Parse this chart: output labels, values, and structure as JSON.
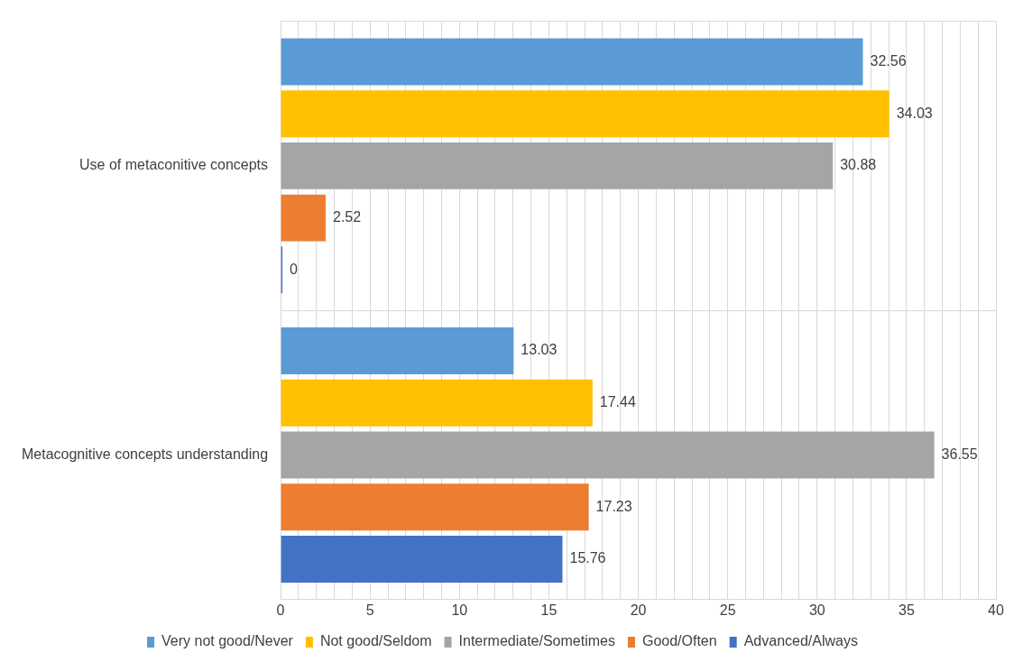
{
  "chart_data": {
    "type": "bar",
    "orientation": "horizontal",
    "categories": [
      "Use of metaconitive concepts",
      "Metacognitive concepts understanding"
    ],
    "series": [
      {
        "name": "Very not good/Never",
        "color": "#5b9bd5",
        "values": [
          32.56,
          13.03
        ]
      },
      {
        "name": "Not good/Seldom",
        "color": "#ffc000",
        "values": [
          34.03,
          17.44
        ]
      },
      {
        "name": "Intermediate/Sometimes",
        "color": "#a5a5a5",
        "values": [
          30.88,
          36.55
        ]
      },
      {
        "name": "Good/Often",
        "color": "#ed7d31",
        "values": [
          2.52,
          17.23
        ]
      },
      {
        "name": "Advanced/Always",
        "color": "#4472c4",
        "values": [
          0,
          15.76
        ]
      }
    ],
    "xlim": [
      0,
      40
    ],
    "xticks": [
      0,
      {
        "value": 1,
        "label": null
      },
      {
        "value": 2,
        "label": null
      },
      {
        "value": 3,
        "label": null
      },
      {
        "value": 4,
        "label": null
      },
      5,
      {
        "value": 6,
        "label": null
      },
      {
        "value": 7,
        "label": null
      },
      {
        "value": 8,
        "label": null
      },
      {
        "value": 9,
        "label": null
      },
      10,
      {
        "value": 11,
        "label": null
      },
      {
        "value": 12,
        "label": null
      },
      {
        "value": 13,
        "label": null
      },
      {
        "value": 14,
        "label": null
      },
      15,
      {
        "value": 16,
        "label": null
      },
      {
        "value": 17,
        "label": null
      },
      {
        "value": 18,
        "label": null
      },
      {
        "value": 19,
        "label": null
      },
      20,
      {
        "value": 21,
        "label": null
      },
      {
        "value": 22,
        "label": null
      },
      {
        "value": 23,
        "label": null
      },
      {
        "value": 24,
        "label": null
      },
      25,
      {
        "value": 26,
        "label": null
      },
      {
        "value": 27,
        "label": null
      },
      {
        "value": 28,
        "label": null
      },
      {
        "value": 29,
        "label": null
      },
      30,
      {
        "value": 31,
        "label": null
      },
      {
        "value": 32,
        "label": null
      },
      {
        "value": 33,
        "label": null
      },
      {
        "value": 34,
        "label": null
      },
      35,
      {
        "value": 36,
        "label": null
      },
      {
        "value": 37,
        "label": null
      },
      {
        "value": 38,
        "label": null
      },
      {
        "value": 39,
        "label": null
      },
      40
    ],
    "grid": true,
    "legend": "bottom",
    "data_labels": true
  }
}
